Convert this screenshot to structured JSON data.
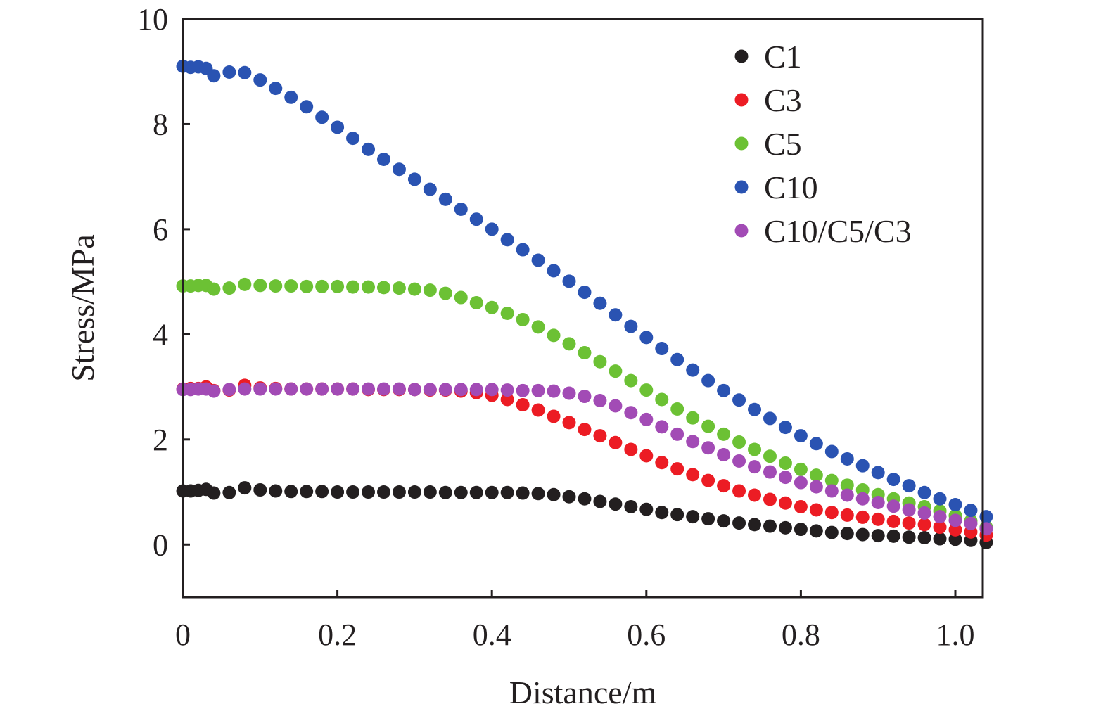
{
  "chart_data": {
    "type": "scatter",
    "xlabel": "Distance/m",
    "ylabel": "Stress/MPa",
    "xlim": [
      0,
      1.05
    ],
    "ylim": [
      -1,
      10
    ],
    "xticks": [
      0,
      0.2,
      0.4,
      0.6,
      0.8,
      1.0
    ],
    "xtick_labels": [
      "0",
      "0.2",
      "0.4",
      "0.6",
      "0.8",
      "1.0"
    ],
    "yticks": [
      0,
      2,
      4,
      6,
      8,
      10
    ],
    "ytick_labels": [
      "0",
      "2",
      "4",
      "6",
      "8",
      "10"
    ],
    "grid": false,
    "legend_position": "top-right",
    "x": [
      0,
      0.01,
      0.02,
      0.03,
      0.04,
      0.06,
      0.08,
      0.1,
      0.12,
      0.14,
      0.16,
      0.18,
      0.2,
      0.22,
      0.24,
      0.26,
      0.28,
      0.3,
      0.32,
      0.34,
      0.36,
      0.38,
      0.4,
      0.42,
      0.44,
      0.46,
      0.48,
      0.5,
      0.52,
      0.54,
      0.56,
      0.58,
      0.6,
      0.62,
      0.64,
      0.66,
      0.68,
      0.7,
      0.72,
      0.74,
      0.76,
      0.78,
      0.8,
      0.82,
      0.84,
      0.86,
      0.88,
      0.9,
      0.92,
      0.94,
      0.96,
      0.98,
      1.0,
      1.02,
      1.04
    ],
    "series": [
      {
        "name": "C1",
        "color": "#231f20",
        "values": [
          1.02,
          1.02,
          1.03,
          1.05,
          0.98,
          0.99,
          1.08,
          1.04,
          1.02,
          1.01,
          1.01,
          1.01,
          1.0,
          1.0,
          1.0,
          1.0,
          1.0,
          1.0,
          1.0,
          0.99,
          0.99,
          0.99,
          0.99,
          0.99,
          0.98,
          0.97,
          0.95,
          0.91,
          0.87,
          0.82,
          0.77,
          0.72,
          0.67,
          0.61,
          0.57,
          0.53,
          0.49,
          0.45,
          0.41,
          0.38,
          0.35,
          0.32,
          0.29,
          0.26,
          0.23,
          0.21,
          0.19,
          0.17,
          0.16,
          0.14,
          0.13,
          0.11,
          0.1,
          0.08,
          0.04
        ]
      },
      {
        "name": "C3",
        "color": "#ec1c24",
        "values": [
          2.96,
          2.97,
          2.97,
          3.0,
          2.93,
          2.94,
          3.03,
          2.98,
          2.97,
          2.96,
          2.96,
          2.96,
          2.96,
          2.96,
          2.95,
          2.95,
          2.95,
          2.95,
          2.94,
          2.94,
          2.92,
          2.89,
          2.84,
          2.76,
          2.66,
          2.56,
          2.44,
          2.32,
          2.19,
          2.07,
          1.94,
          1.81,
          1.69,
          1.56,
          1.44,
          1.33,
          1.22,
          1.12,
          1.02,
          0.94,
          0.86,
          0.79,
          0.72,
          0.66,
          0.61,
          0.56,
          0.52,
          0.48,
          0.44,
          0.41,
          0.38,
          0.33,
          0.28,
          0.24,
          0.18
        ]
      },
      {
        "name": "C5",
        "color": "#6cc134",
        "values": [
          4.92,
          4.92,
          4.93,
          4.93,
          4.86,
          4.88,
          4.95,
          4.93,
          4.92,
          4.92,
          4.91,
          4.91,
          4.91,
          4.9,
          4.9,
          4.89,
          4.88,
          4.86,
          4.84,
          4.78,
          4.7,
          4.6,
          4.51,
          4.4,
          4.28,
          4.14,
          3.98,
          3.82,
          3.65,
          3.48,
          3.3,
          3.12,
          2.94,
          2.76,
          2.58,
          2.41,
          2.25,
          2.1,
          1.95,
          1.81,
          1.68,
          1.55,
          1.43,
          1.32,
          1.22,
          1.13,
          1.04,
          0.95,
          0.87,
          0.79,
          0.72,
          0.64,
          0.55,
          0.45,
          0.33
        ]
      },
      {
        "name": "C10",
        "color": "#2a53b2",
        "values": [
          9.1,
          9.08,
          9.09,
          9.06,
          8.92,
          8.99,
          8.98,
          8.84,
          8.68,
          8.51,
          8.33,
          8.13,
          7.94,
          7.73,
          7.52,
          7.33,
          7.14,
          6.95,
          6.76,
          6.57,
          6.38,
          6.19,
          6.0,
          5.8,
          5.61,
          5.41,
          5.21,
          5.01,
          4.8,
          4.59,
          4.37,
          4.15,
          3.94,
          3.73,
          3.52,
          3.32,
          3.12,
          2.93,
          2.75,
          2.57,
          2.4,
          2.23,
          2.07,
          1.92,
          1.77,
          1.63,
          1.5,
          1.37,
          1.24,
          1.12,
          0.99,
          0.87,
          0.76,
          0.65,
          0.53
        ]
      },
      {
        "name": "C10/C5/C3",
        "color": "#a24bb5",
        "values": [
          2.95,
          2.95,
          2.96,
          2.96,
          2.92,
          2.95,
          2.96,
          2.96,
          2.96,
          2.96,
          2.96,
          2.96,
          2.96,
          2.96,
          2.96,
          2.96,
          2.96,
          2.95,
          2.95,
          2.95,
          2.95,
          2.95,
          2.95,
          2.94,
          2.93,
          2.93,
          2.92,
          2.88,
          2.82,
          2.74,
          2.64,
          2.51,
          2.38,
          2.24,
          2.1,
          1.96,
          1.84,
          1.71,
          1.59,
          1.48,
          1.38,
          1.28,
          1.18,
          1.1,
          1.02,
          0.94,
          0.87,
          0.8,
          0.73,
          0.66,
          0.6,
          0.53,
          0.46,
          0.4,
          0.3
        ]
      }
    ]
  }
}
